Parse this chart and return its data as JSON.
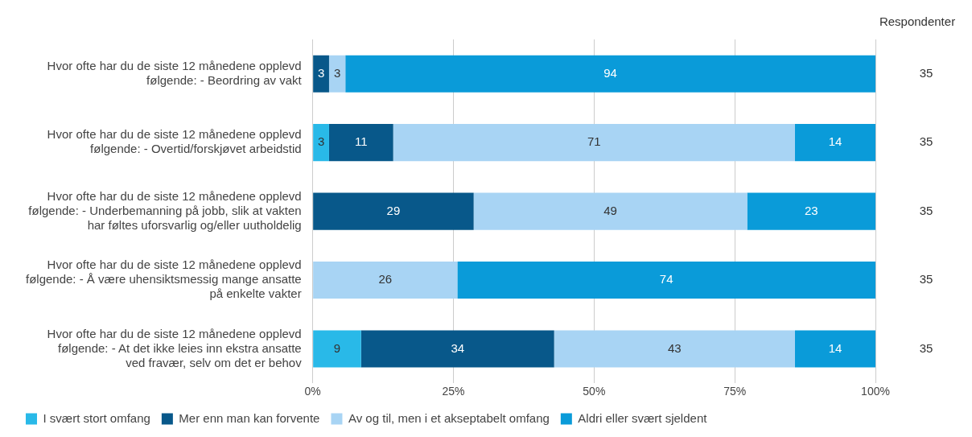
{
  "chart_data": {
    "type": "bar",
    "orientation": "horizontal",
    "stacked": true,
    "categories": [
      "Hvor ofte har du de siste 12 månedene opplevd følgende: - Beordring av vakt",
      "Hvor ofte har du de siste 12 månedene opplevd følgende: - Overtid/forskjøvet arbeidstid",
      "Hvor ofte har du de siste 12 månedene opplevd følgende: - Underbemanning på jobb, slik at vakten har føltes uforsvarlig og/eller uutholdelig",
      "Hvor ofte har du de siste 12 månedene opplevd følgende: - Å være uhensiktsmessig mange ansatte på enkelte vakter",
      "Hvor ofte har du de siste 12 månedene opplevd følgende: - At det ikke leies inn ekstra ansatte ved fravær, selv om det er behov"
    ],
    "series": [
      {
        "name": "I svært stort omfang",
        "color": "#29b9e8",
        "values": [
          null,
          2.9,
          null,
          null,
          8.6
        ],
        "value_labels": [
          null,
          "3",
          null,
          null,
          "9"
        ]
      },
      {
        "name": "Mer enn man kan forvente",
        "color": "#08588a",
        "values": [
          2.9,
          11.4,
          28.6,
          null,
          34.3
        ],
        "value_labels": [
          "3",
          "11",
          "29",
          null,
          "34"
        ]
      },
      {
        "name": "Av og til, men i et akseptabelt omfang",
        "color": "#a8d4f4",
        "values": [
          2.9,
          71.4,
          48.6,
          25.7,
          42.8
        ],
        "value_labels": [
          "3",
          "71",
          "49",
          "26",
          "43"
        ]
      },
      {
        "name": "Aldri eller svært sjeldent",
        "color": "#0a9bd9",
        "values": [
          94.2,
          14.3,
          22.8,
          74.3,
          14.3
        ],
        "value_labels": [
          "94",
          "14",
          "23",
          "74",
          "14"
        ]
      }
    ],
    "xlim": [
      0,
      100
    ],
    "xticks": [
      {
        "value": 0,
        "label": "0%"
      },
      {
        "value": 25,
        "label": "25%"
      },
      {
        "value": 50,
        "label": "50%"
      },
      {
        "value": 75,
        "label": "75%"
      },
      {
        "value": 100,
        "label": "100%"
      }
    ],
    "grid": "x",
    "legend": "bottom",
    "annotations": [
      "Respondenter",
      "35",
      "35",
      "35",
      "35",
      "35"
    ]
  }
}
